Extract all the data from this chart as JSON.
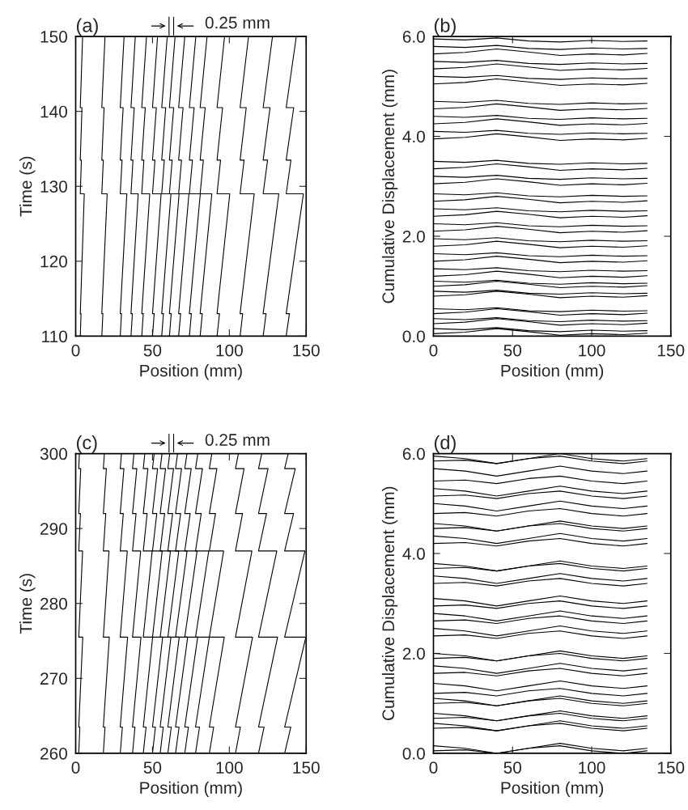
{
  "chart_data": [
    {
      "type": "line",
      "title": "(a)",
      "xlabel": "Position (mm)",
      "ylabel": "Time (s)",
      "annotations": [
        "0.25 mm"
      ],
      "xlim": [
        0,
        150
      ],
      "xticks": [
        0,
        50,
        100,
        150
      ],
      "ylim": [
        110,
        150
      ],
      "yticks": [
        110,
        120,
        130,
        140,
        150
      ],
      "grid": false,
      "marker": "none",
      "line_style": "solid",
      "series": [
        {
          "color": "#000000",
          "x": [
            3,
            3.5,
            3,
            5.6,
            3,
            3.7,
            3,
            4.1,
            3,
            4.5
          ],
          "values": [
            110,
            113,
            113,
            129,
            129,
            133.5,
            133.5,
            140.5,
            140.5,
            150
          ]
        },
        {
          "color": "#000000",
          "x": [
            17,
            17.7,
            17,
            20.5,
            17,
            18.0,
            17,
            18.5,
            17,
            19.1
          ],
          "values": [
            110,
            113,
            113,
            129,
            129,
            133.5,
            133.5,
            140.5,
            140.5,
            150
          ]
        },
        {
          "color": "#000000",
          "x": [
            29,
            29.8,
            29,
            33.3,
            29,
            30.2,
            29,
            30.9,
            29,
            31.5
          ],
          "values": [
            110,
            113,
            113,
            129,
            129,
            133.5,
            133.5,
            140.5,
            140.5,
            150
          ]
        },
        {
          "color": "#000000",
          "x": [
            36,
            36.9,
            36,
            40.7,
            36,
            37.3,
            36,
            38.1,
            36,
            38.8
          ],
          "values": [
            110,
            113,
            113,
            129,
            129,
            133.5,
            133.5,
            140.5,
            140.5,
            150
          ]
        },
        {
          "color": "#000000",
          "x": [
            43,
            44.0,
            43,
            48.2,
            43,
            44.4,
            43,
            45.3,
            43,
            46.1
          ],
          "values": [
            110,
            113,
            113,
            129,
            129,
            133.5,
            133.5,
            140.5,
            140.5,
            150
          ]
        },
        {
          "color": "#000000",
          "x": [
            50,
            51.1,
            50,
            55.6,
            50,
            51.6,
            50,
            52.5,
            50,
            53.3
          ],
          "values": [
            110,
            113,
            113,
            129,
            129,
            133.5,
            133.5,
            140.5,
            140.5,
            150
          ]
        },
        {
          "color": "#000000",
          "x": [
            56,
            57.1,
            56,
            62.0,
            56,
            57.7,
            56,
            58.6,
            56,
            59.6
          ],
          "values": [
            110,
            113,
            113,
            129,
            129,
            133.5,
            133.5,
            140.5,
            140.5,
            150
          ]
        },
        {
          "color": "#000000",
          "x": [
            61,
            62.2,
            61,
            67.3,
            61,
            62.8,
            61,
            63.8,
            61,
            64.7
          ],
          "values": [
            110,
            113,
            113,
            129,
            129,
            133.5,
            133.5,
            140.5,
            140.5,
            150
          ]
        },
        {
          "color": "#000000",
          "x": [
            67,
            68.3,
            67,
            73.7,
            67,
            68.9,
            67,
            69.9,
            67,
            71.0
          ],
          "values": [
            110,
            113,
            113,
            129,
            129,
            133.5,
            133.5,
            140.5,
            140.5,
            150
          ]
        },
        {
          "color": "#000000",
          "x": [
            74,
            75.3,
            74,
            81.1,
            74,
            76.0,
            74,
            77.1,
            74,
            78.2
          ],
          "values": [
            110,
            113,
            113,
            129,
            129,
            133.5,
            133.5,
            140.5,
            140.5,
            150
          ]
        },
        {
          "color": "#000000",
          "x": [
            81,
            82.4,
            81,
            88.6,
            81,
            83.1,
            81,
            84.3,
            81,
            85.5
          ],
          "values": [
            110,
            113,
            113,
            129,
            129,
            133.5,
            133.5,
            140.5,
            140.5,
            150
          ]
        },
        {
          "color": "#000000",
          "x": [
            92,
            93.6,
            92,
            100.3,
            92,
            94.3,
            92,
            95.6,
            92,
            96.9
          ],
          "values": [
            110,
            113,
            113,
            129,
            129,
            133.5,
            133.5,
            140.5,
            140.5,
            150
          ]
        },
        {
          "color": "#000000",
          "x": [
            107,
            108.7,
            107,
            116.2,
            107,
            109.6,
            107,
            111.0,
            107,
            112.5
          ],
          "values": [
            110,
            113,
            113,
            129,
            129,
            133.5,
            133.5,
            140.5,
            140.5,
            150
          ]
        },
        {
          "color": "#000000",
          "x": [
            122,
            123.9,
            122,
            132.2,
            122,
            124.9,
            122,
            126.5,
            122,
            128.1
          ],
          "values": [
            110,
            113,
            113,
            129,
            129,
            133.5,
            133.5,
            140.5,
            140.5,
            150
          ]
        },
        {
          "color": "#000000",
          "x": [
            137,
            139.1,
            137,
            148.2,
            137,
            140.1,
            137,
            141.9,
            137,
            143.6
          ],
          "values": [
            110,
            113,
            113,
            129,
            129,
            133.5,
            133.5,
            140.5,
            140.5,
            150
          ]
        }
      ]
    },
    {
      "type": "line",
      "title": "(b)",
      "xlabel": "Position (mm)",
      "ylabel": "Cumulative Displacement (mm)",
      "xlim": [
        0,
        150
      ],
      "xticks": [
        0,
        50,
        100,
        150
      ],
      "ylim": [
        0,
        6
      ],
      "yticks": [
        {
          "value": 0,
          "label": "0.0"
        },
        {
          "value": 2,
          "label": "2.0"
        },
        {
          "value": 4,
          "label": "4.0"
        },
        {
          "value": 6,
          "label": "6.0"
        }
      ],
      "grid": false,
      "marker": "none",
      "line_style": "solid",
      "x": [
        0,
        20,
        40,
        60,
        80,
        100,
        120,
        135
      ],
      "series": [
        {
          "color": "#000000",
          "values": [
            0.05,
            0.08,
            0.15,
            0.09,
            0.02,
            0.05,
            0.03,
            0.06
          ]
        },
        {
          "color": "#000000",
          "values": [
            0.15,
            0.13,
            0.17,
            0.11,
            0.09,
            0.12,
            0.1,
            0.11
          ]
        },
        {
          "color": "#000000",
          "values": [
            0.25,
            0.28,
            0.35,
            0.29,
            0.22,
            0.25,
            0.23,
            0.26
          ]
        },
        {
          "color": "#000000",
          "values": [
            0.35,
            0.33,
            0.37,
            0.31,
            0.29,
            0.32,
            0.3,
            0.31
          ]
        },
        {
          "color": "#000000",
          "values": [
            0.45,
            0.48,
            0.55,
            0.49,
            0.42,
            0.45,
            0.43,
            0.46
          ]
        },
        {
          "color": "#000000",
          "values": [
            0.55,
            0.53,
            0.57,
            0.51,
            0.49,
            0.52,
            0.5,
            0.51
          ]
        },
        {
          "color": "#000000",
          "values": [
            0.8,
            0.83,
            0.9,
            0.84,
            0.77,
            0.8,
            0.78,
            0.81
          ]
        },
        {
          "color": "#000000",
          "values": [
            0.9,
            0.88,
            0.92,
            0.86,
            0.84,
            0.87,
            0.85,
            0.86
          ]
        },
        {
          "color": "#000000",
          "values": [
            1.0,
            1.03,
            1.1,
            1.04,
            0.97,
            1.0,
            0.98,
            1.01
          ]
        },
        {
          "color": "#000000",
          "values": [
            1.1,
            1.08,
            1.12,
            1.06,
            1.04,
            1.07,
            1.05,
            1.06
          ]
        },
        {
          "color": "#000000",
          "values": [
            1.2,
            1.23,
            1.3,
            1.24,
            1.17,
            1.2,
            1.18,
            1.21
          ]
        },
        {
          "color": "#000000",
          "values": [
            1.35,
            1.33,
            1.37,
            1.31,
            1.29,
            1.32,
            1.3,
            1.31
          ]
        },
        {
          "color": "#000000",
          "values": [
            1.5,
            1.53,
            1.6,
            1.54,
            1.47,
            1.5,
            1.48,
            1.51
          ]
        },
        {
          "color": "#000000",
          "values": [
            1.65,
            1.63,
            1.67,
            1.61,
            1.59,
            1.62,
            1.6,
            1.61
          ]
        },
        {
          "color": "#000000",
          "values": [
            1.8,
            1.83,
            1.9,
            1.84,
            1.77,
            1.8,
            1.78,
            1.81
          ]
        },
        {
          "color": "#000000",
          "values": [
            1.95,
            1.93,
            1.97,
            1.91,
            1.89,
            1.92,
            1.9,
            1.91
          ]
        },
        {
          "color": "#000000",
          "values": [
            2.1,
            2.13,
            2.2,
            2.14,
            2.07,
            2.1,
            2.08,
            2.11
          ]
        },
        {
          "color": "#000000",
          "values": [
            2.25,
            2.23,
            2.27,
            2.21,
            2.19,
            2.22,
            2.2,
            2.21
          ]
        },
        {
          "color": "#000000",
          "values": [
            2.4,
            2.43,
            2.5,
            2.44,
            2.37,
            2.4,
            2.38,
            2.41
          ]
        },
        {
          "color": "#000000",
          "values": [
            2.55,
            2.53,
            2.57,
            2.51,
            2.49,
            2.52,
            2.5,
            2.51
          ]
        },
        {
          "color": "#000000",
          "values": [
            2.7,
            2.73,
            2.8,
            2.74,
            2.67,
            2.7,
            2.68,
            2.71
          ]
        },
        {
          "color": "#000000",
          "values": [
            2.85,
            2.83,
            2.87,
            2.81,
            2.79,
            2.82,
            2.8,
            2.81
          ]
        },
        {
          "color": "#000000",
          "values": [
            3.05,
            3.08,
            3.15,
            3.09,
            3.02,
            3.05,
            3.03,
            3.06
          ]
        },
        {
          "color": "#000000",
          "values": [
            3.2,
            3.18,
            3.22,
            3.16,
            3.14,
            3.17,
            3.15,
            3.16
          ]
        },
        {
          "color": "#000000",
          "values": [
            3.35,
            3.38,
            3.45,
            3.39,
            3.32,
            3.35,
            3.33,
            3.36
          ]
        },
        {
          "color": "#000000",
          "values": [
            3.5,
            3.48,
            3.52,
            3.46,
            3.44,
            3.47,
            3.45,
            3.46
          ]
        },
        {
          "color": "#000000",
          "values": [
            3.95,
            3.98,
            4.05,
            3.99,
            3.92,
            3.95,
            3.93,
            3.96
          ]
        },
        {
          "color": "#000000",
          "values": [
            4.1,
            4.08,
            4.12,
            4.06,
            4.04,
            4.07,
            4.05,
            4.06
          ]
        },
        {
          "color": "#000000",
          "values": [
            4.25,
            4.28,
            4.35,
            4.29,
            4.22,
            4.25,
            4.23,
            4.26
          ]
        },
        {
          "color": "#000000",
          "values": [
            4.4,
            4.38,
            4.42,
            4.36,
            4.34,
            4.37,
            4.35,
            4.36
          ]
        },
        {
          "color": "#000000",
          "values": [
            4.55,
            4.58,
            4.65,
            4.59,
            4.52,
            4.55,
            4.53,
            4.56
          ]
        },
        {
          "color": "#000000",
          "values": [
            4.7,
            4.68,
            4.72,
            4.66,
            4.64,
            4.67,
            4.65,
            4.66
          ]
        },
        {
          "color": "#000000",
          "values": [
            5.05,
            5.08,
            5.15,
            5.09,
            5.02,
            5.05,
            5.03,
            5.06
          ]
        },
        {
          "color": "#000000",
          "values": [
            5.2,
            5.18,
            5.22,
            5.16,
            5.14,
            5.17,
            5.15,
            5.16
          ]
        },
        {
          "color": "#000000",
          "values": [
            5.35,
            5.38,
            5.45,
            5.39,
            5.32,
            5.35,
            5.33,
            5.36
          ]
        },
        {
          "color": "#000000",
          "values": [
            5.5,
            5.48,
            5.52,
            5.46,
            5.44,
            5.47,
            5.45,
            5.46
          ]
        },
        {
          "color": "#000000",
          "values": [
            5.65,
            5.68,
            5.75,
            5.69,
            5.62,
            5.65,
            5.63,
            5.66
          ]
        },
        {
          "color": "#000000",
          "values": [
            5.8,
            5.78,
            5.82,
            5.76,
            5.74,
            5.77,
            5.75,
            5.76
          ]
        },
        {
          "color": "#000000",
          "values": [
            5.95,
            5.93,
            5.97,
            5.91,
            5.89,
            5.92,
            5.9,
            5.91
          ]
        }
      ]
    },
    {
      "type": "line",
      "title": "(c)",
      "xlabel": "Position (mm)",
      "ylabel": "Time (s)",
      "annotations": [
        "0.25 mm"
      ],
      "xlim": [
        0,
        150
      ],
      "xticks": [
        0,
        50,
        100,
        150
      ],
      "ylim": [
        260,
        300
      ],
      "yticks": [
        260,
        270,
        280,
        290,
        300
      ],
      "grid": false,
      "marker": "none",
      "line_style": "solid",
      "series": [
        {
          "color": "#000000",
          "x": [
            2,
            2.7,
            2,
            4.6,
            2,
            4.5,
            2,
            3.1,
            2,
            3.3,
            2,
            2.4
          ],
          "values": [
            260,
            263.5,
            263.5,
            275.5,
            275.5,
            287,
            287,
            292,
            292,
            298,
            298,
            300
          ]
        },
        {
          "color": "#000000",
          "x": [
            18,
            19.1,
            18,
            21.9,
            18,
            21.7,
            18,
            19.6,
            18,
            20.0,
            18,
            18.7
          ],
          "values": [
            260,
            263.5,
            263.5,
            275.5,
            275.5,
            287,
            287,
            292,
            292,
            298,
            298,
            300
          ]
        },
        {
          "color": "#000000",
          "x": [
            29,
            30.4,
            29,
            33.8,
            29,
            33.6,
            29,
            31.0,
            29,
            31.4,
            29,
            29.8
          ],
          "values": [
            260,
            263.5,
            263.5,
            275.5,
            275.5,
            287,
            287,
            292,
            292,
            298,
            298,
            300
          ]
        },
        {
          "color": "#000000",
          "x": [
            37,
            38.6,
            37,
            42.5,
            37,
            42.3,
            37,
            39.3,
            37,
            39.8,
            37,
            37.9
          ],
          "values": [
            260,
            263.5,
            263.5,
            275.5,
            275.5,
            287,
            287,
            292,
            292,
            298,
            298,
            300
          ]
        },
        {
          "color": "#000000",
          "x": [
            44,
            45.8,
            44,
            50.1,
            44,
            49.8,
            44,
            46.5,
            44,
            47.0,
            44,
            45.0
          ],
          "values": [
            260,
            263.5,
            263.5,
            275.5,
            275.5,
            287,
            287,
            292,
            292,
            298,
            298,
            300
          ]
        },
        {
          "color": "#000000",
          "x": [
            50,
            51.9,
            50,
            56.6,
            50,
            56.3,
            50,
            52.8,
            50,
            53.3,
            50,
            51.1
          ],
          "values": [
            260,
            263.5,
            263.5,
            275.5,
            275.5,
            287,
            287,
            292,
            292,
            298,
            298,
            300
          ]
        },
        {
          "color": "#000000",
          "x": [
            55,
            57.0,
            55,
            62.0,
            55,
            61.7,
            55,
            57.9,
            55,
            58.5,
            55,
            56.2
          ],
          "values": [
            260,
            263.5,
            263.5,
            275.5,
            275.5,
            287,
            287,
            292,
            292,
            298,
            298,
            300
          ]
        },
        {
          "color": "#000000",
          "x": [
            60,
            62.2,
            60,
            67.4,
            60,
            67.1,
            60,
            63.1,
            60,
            63.7,
            60,
            61.2
          ],
          "values": [
            260,
            263.5,
            263.5,
            275.5,
            275.5,
            287,
            287,
            292,
            292,
            298,
            298,
            300
          ]
        },
        {
          "color": "#000000",
          "x": [
            65,
            67.3,
            65,
            72.9,
            65,
            72.5,
            65,
            68.3,
            65,
            68.9,
            65,
            66.3
          ],
          "values": [
            260,
            263.5,
            263.5,
            275.5,
            275.5,
            287,
            287,
            292,
            292,
            298,
            298,
            300
          ]
        },
        {
          "color": "#000000",
          "x": [
            71,
            73.4,
            71,
            79.4,
            71,
            79.0,
            71,
            74.5,
            71,
            75.2,
            71,
            72.4
          ],
          "values": [
            260,
            263.5,
            263.5,
            275.5,
            275.5,
            287,
            287,
            292,
            292,
            298,
            298,
            300
          ]
        },
        {
          "color": "#000000",
          "x": [
            78,
            80.6,
            78,
            87.0,
            78,
            86.6,
            78,
            81.7,
            78,
            82.5,
            78,
            79.5
          ],
          "values": [
            260,
            263.5,
            263.5,
            275.5,
            275.5,
            287,
            287,
            292,
            292,
            298,
            298,
            300
          ]
        },
        {
          "color": "#000000",
          "x": [
            87,
            89.8,
            87,
            96.7,
            87,
            96.3,
            87,
            91.0,
            87,
            91.9,
            87,
            88.6
          ],
          "values": [
            260,
            263.5,
            263.5,
            275.5,
            275.5,
            287,
            287,
            292,
            292,
            298,
            298,
            300
          ]
        },
        {
          "color": "#000000",
          "x": [
            104,
            107.2,
            104,
            115.1,
            104,
            114.7,
            104,
            108.6,
            104,
            109.6,
            104,
            105.9
          ],
          "values": [
            260,
            263.5,
            263.5,
            275.5,
            275.5,
            287,
            287,
            292,
            292,
            298,
            298,
            300
          ]
        },
        {
          "color": "#000000",
          "x": [
            119,
            122.6,
            119,
            131.4,
            119,
            130.9,
            119,
            124.2,
            119,
            125.2,
            119,
            121.1
          ],
          "values": [
            260,
            263.5,
            263.5,
            275.5,
            275.5,
            287,
            287,
            292,
            292,
            298,
            298,
            300
          ]
        },
        {
          "color": "#000000",
          "x": [
            136,
            140.0,
            136,
            149.8,
            136,
            149.2,
            136,
            141.8,
            136,
            142.9,
            136,
            138.3
          ],
          "values": [
            260,
            263.5,
            263.5,
            275.5,
            275.5,
            287,
            287,
            292,
            292,
            298,
            298,
            300
          ]
        }
      ]
    },
    {
      "type": "line",
      "title": "(d)",
      "xlabel": "Position (mm)",
      "ylabel": "Cumulative Displacement (mm)",
      "xlim": [
        0,
        150
      ],
      "xticks": [
        0,
        50,
        100,
        150
      ],
      "ylim": [
        0,
        6
      ],
      "yticks": [
        {
          "value": 0,
          "label": "0.0"
        },
        {
          "value": 2,
          "label": "2.0"
        },
        {
          "value": 4,
          "label": "4.0"
        },
        {
          "value": 6,
          "label": "6.0"
        }
      ],
      "grid": false,
      "marker": "none",
      "line_style": "solid",
      "x": [
        0,
        20,
        40,
        60,
        80,
        100,
        120,
        135
      ],
      "series": [
        {
          "color": "#000000",
          "values": [
            0.05,
            0.07,
            0.0,
            0.1,
            0.15,
            0.05,
            0.0,
            0.05
          ]
        },
        {
          "color": "#000000",
          "values": [
            0.15,
            0.1,
            0.0,
            0.1,
            0.2,
            0.1,
            0.05,
            0.1
          ]
        },
        {
          "color": "#000000",
          "values": [
            0.5,
            0.52,
            0.45,
            0.55,
            0.6,
            0.5,
            0.45,
            0.5
          ]
        },
        {
          "color": "#000000",
          "values": [
            0.6,
            0.55,
            0.45,
            0.55,
            0.65,
            0.55,
            0.5,
            0.55
          ]
        },
        {
          "color": "#000000",
          "values": [
            0.7,
            0.72,
            0.65,
            0.75,
            0.8,
            0.7,
            0.65,
            0.7
          ]
        },
        {
          "color": "#000000",
          "values": [
            0.8,
            0.75,
            0.65,
            0.75,
            0.85,
            0.75,
            0.7,
            0.75
          ]
        },
        {
          "color": "#000000",
          "values": [
            1.0,
            1.02,
            0.95,
            1.05,
            1.1,
            1.0,
            0.95,
            1.0
          ]
        },
        {
          "color": "#000000",
          "values": [
            1.1,
            1.05,
            0.95,
            1.05,
            1.15,
            1.05,
            1.0,
            1.05
          ]
        },
        {
          "color": "#000000",
          "values": [
            1.2,
            1.22,
            1.15,
            1.25,
            1.3,
            1.2,
            1.15,
            1.2
          ]
        },
        {
          "color": "#000000",
          "values": [
            1.4,
            1.35,
            1.25,
            1.35,
            1.45,
            1.35,
            1.3,
            1.35
          ]
        },
        {
          "color": "#000000",
          "values": [
            1.6,
            1.62,
            1.55,
            1.65,
            1.7,
            1.6,
            1.55,
            1.6
          ]
        },
        {
          "color": "#000000",
          "values": [
            1.75,
            1.7,
            1.6,
            1.7,
            1.8,
            1.7,
            1.65,
            1.7
          ]
        },
        {
          "color": "#000000",
          "values": [
            1.9,
            1.92,
            1.85,
            1.95,
            2.0,
            1.9,
            1.85,
            1.9
          ]
        },
        {
          "color": "#000000",
          "values": [
            2.0,
            1.95,
            1.85,
            1.95,
            2.05,
            1.95,
            1.9,
            1.95
          ]
        },
        {
          "color": "#000000",
          "values": [
            2.35,
            2.37,
            2.3,
            2.4,
            2.45,
            2.35,
            2.3,
            2.35
          ]
        },
        {
          "color": "#000000",
          "values": [
            2.5,
            2.45,
            2.35,
            2.45,
            2.55,
            2.45,
            2.4,
            2.45
          ]
        },
        {
          "color": "#000000",
          "values": [
            2.65,
            2.67,
            2.6,
            2.7,
            2.75,
            2.65,
            2.6,
            2.65
          ]
        },
        {
          "color": "#000000",
          "values": [
            2.8,
            2.75,
            2.65,
            2.75,
            2.85,
            2.75,
            2.7,
            2.75
          ]
        },
        {
          "color": "#000000",
          "values": [
            2.95,
            2.97,
            2.9,
            3.0,
            3.05,
            2.95,
            2.9,
            2.95
          ]
        },
        {
          "color": "#000000",
          "values": [
            3.1,
            3.05,
            2.95,
            3.05,
            3.15,
            3.05,
            3.0,
            3.05
          ]
        },
        {
          "color": "#000000",
          "values": [
            3.4,
            3.42,
            3.35,
            3.45,
            3.5,
            3.4,
            3.35,
            3.4
          ]
        },
        {
          "color": "#000000",
          "values": [
            3.55,
            3.5,
            3.4,
            3.5,
            3.6,
            3.5,
            3.45,
            3.5
          ]
        },
        {
          "color": "#000000",
          "values": [
            3.7,
            3.72,
            3.65,
            3.75,
            3.8,
            3.7,
            3.65,
            3.7
          ]
        },
        {
          "color": "#000000",
          "values": [
            3.8,
            3.75,
            3.65,
            3.75,
            3.85,
            3.75,
            3.7,
            3.75
          ]
        },
        {
          "color": "#000000",
          "values": [
            4.2,
            4.22,
            4.15,
            4.25,
            4.3,
            4.2,
            4.15,
            4.2
          ]
        },
        {
          "color": "#000000",
          "values": [
            4.35,
            4.3,
            4.2,
            4.3,
            4.4,
            4.3,
            4.25,
            4.3
          ]
        },
        {
          "color": "#000000",
          "values": [
            4.5,
            4.52,
            4.45,
            4.55,
            4.6,
            4.5,
            4.45,
            4.5
          ]
        },
        {
          "color": "#000000",
          "values": [
            4.6,
            4.55,
            4.45,
            4.55,
            4.65,
            4.55,
            4.5,
            4.55
          ]
        },
        {
          "color": "#000000",
          "values": [
            4.8,
            4.82,
            4.75,
            4.85,
            4.9,
            4.8,
            4.75,
            4.8
          ]
        },
        {
          "color": "#000000",
          "values": [
            5.0,
            4.95,
            4.85,
            4.95,
            5.05,
            4.95,
            4.9,
            4.95
          ]
        },
        {
          "color": "#000000",
          "values": [
            5.15,
            5.17,
            5.1,
            5.2,
            5.25,
            5.15,
            5.1,
            5.15
          ]
        },
        {
          "color": "#000000",
          "values": [
            5.3,
            5.25,
            5.15,
            5.25,
            5.35,
            5.25,
            5.2,
            5.25
          ]
        },
        {
          "color": "#000000",
          "values": [
            5.45,
            5.47,
            5.4,
            5.5,
            5.55,
            5.45,
            5.4,
            5.45
          ]
        },
        {
          "color": "#000000",
          "values": [
            5.7,
            5.65,
            5.55,
            5.65,
            5.75,
            5.65,
            5.6,
            5.65
          ]
        },
        {
          "color": "#000000",
          "values": [
            5.85,
            5.87,
            5.8,
            5.9,
            5.95,
            5.85,
            5.8,
            5.85
          ]
        },
        {
          "color": "#000000",
          "values": [
            5.95,
            5.9,
            5.8,
            5.9,
            6.0,
            5.9,
            5.85,
            5.9
          ]
        }
      ]
    }
  ]
}
